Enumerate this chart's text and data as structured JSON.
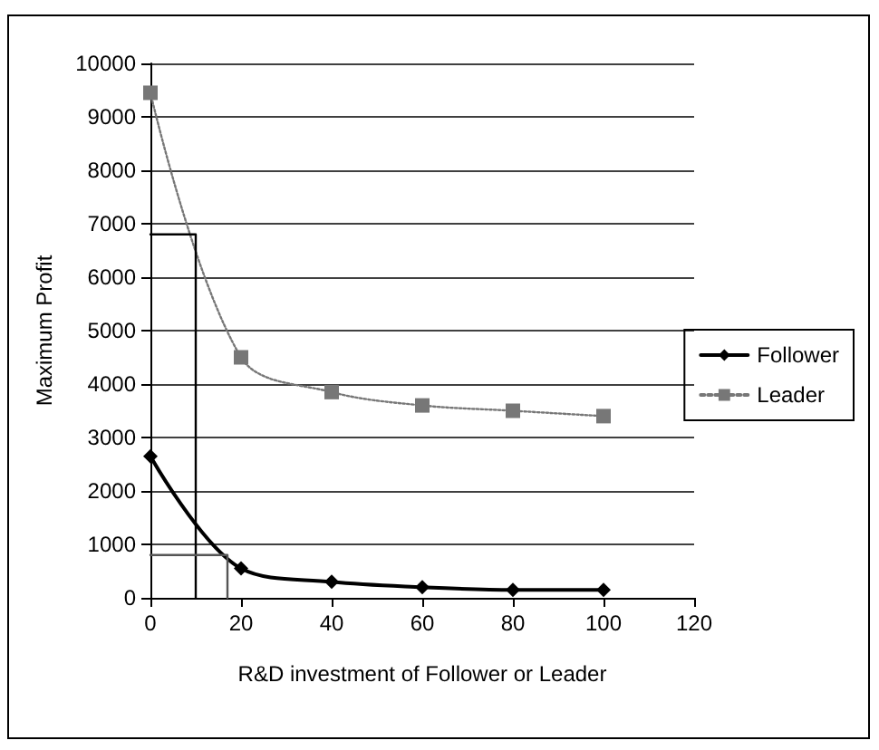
{
  "chart_data": {
    "type": "line",
    "xlabel": "R&D investment of Follower or Leader",
    "ylabel": "Maximum Profit",
    "xlim": [
      0,
      120
    ],
    "xticks": [
      0,
      20,
      40,
      60,
      80,
      100,
      120
    ],
    "ylim": [
      0,
      10000
    ],
    "yticks": [
      0,
      1000,
      2000,
      3000,
      4000,
      5000,
      6000,
      7000,
      8000,
      9000,
      10000
    ],
    "grid": "y",
    "legend": "right",
    "series": [
      {
        "name": "Follower",
        "color": "#000000",
        "marker": "diamond",
        "line_style": "solid",
        "x": [
          0,
          20,
          40,
          60,
          80,
          100
        ],
        "values": [
          2650,
          550,
          300,
          200,
          150,
          150
        ]
      },
      {
        "name": "Leader",
        "color": "#777777",
        "marker": "square",
        "line_style": "dotted",
        "x": [
          0,
          20,
          40,
          60,
          80,
          100
        ],
        "values": [
          9450,
          4500,
          3850,
          3600,
          3500,
          3400
        ]
      },
      {
        "color": "#000000",
        "marker": "none",
        "line_style": "solid",
        "x": [
          0,
          10,
          10
        ],
        "values": [
          6800,
          6800,
          0
        ]
      },
      {
        "color": "#555555",
        "marker": "none",
        "line_style": "solid",
        "x": [
          0,
          17,
          17
        ],
        "values": [
          800,
          800,
          0
        ]
      }
    ]
  }
}
